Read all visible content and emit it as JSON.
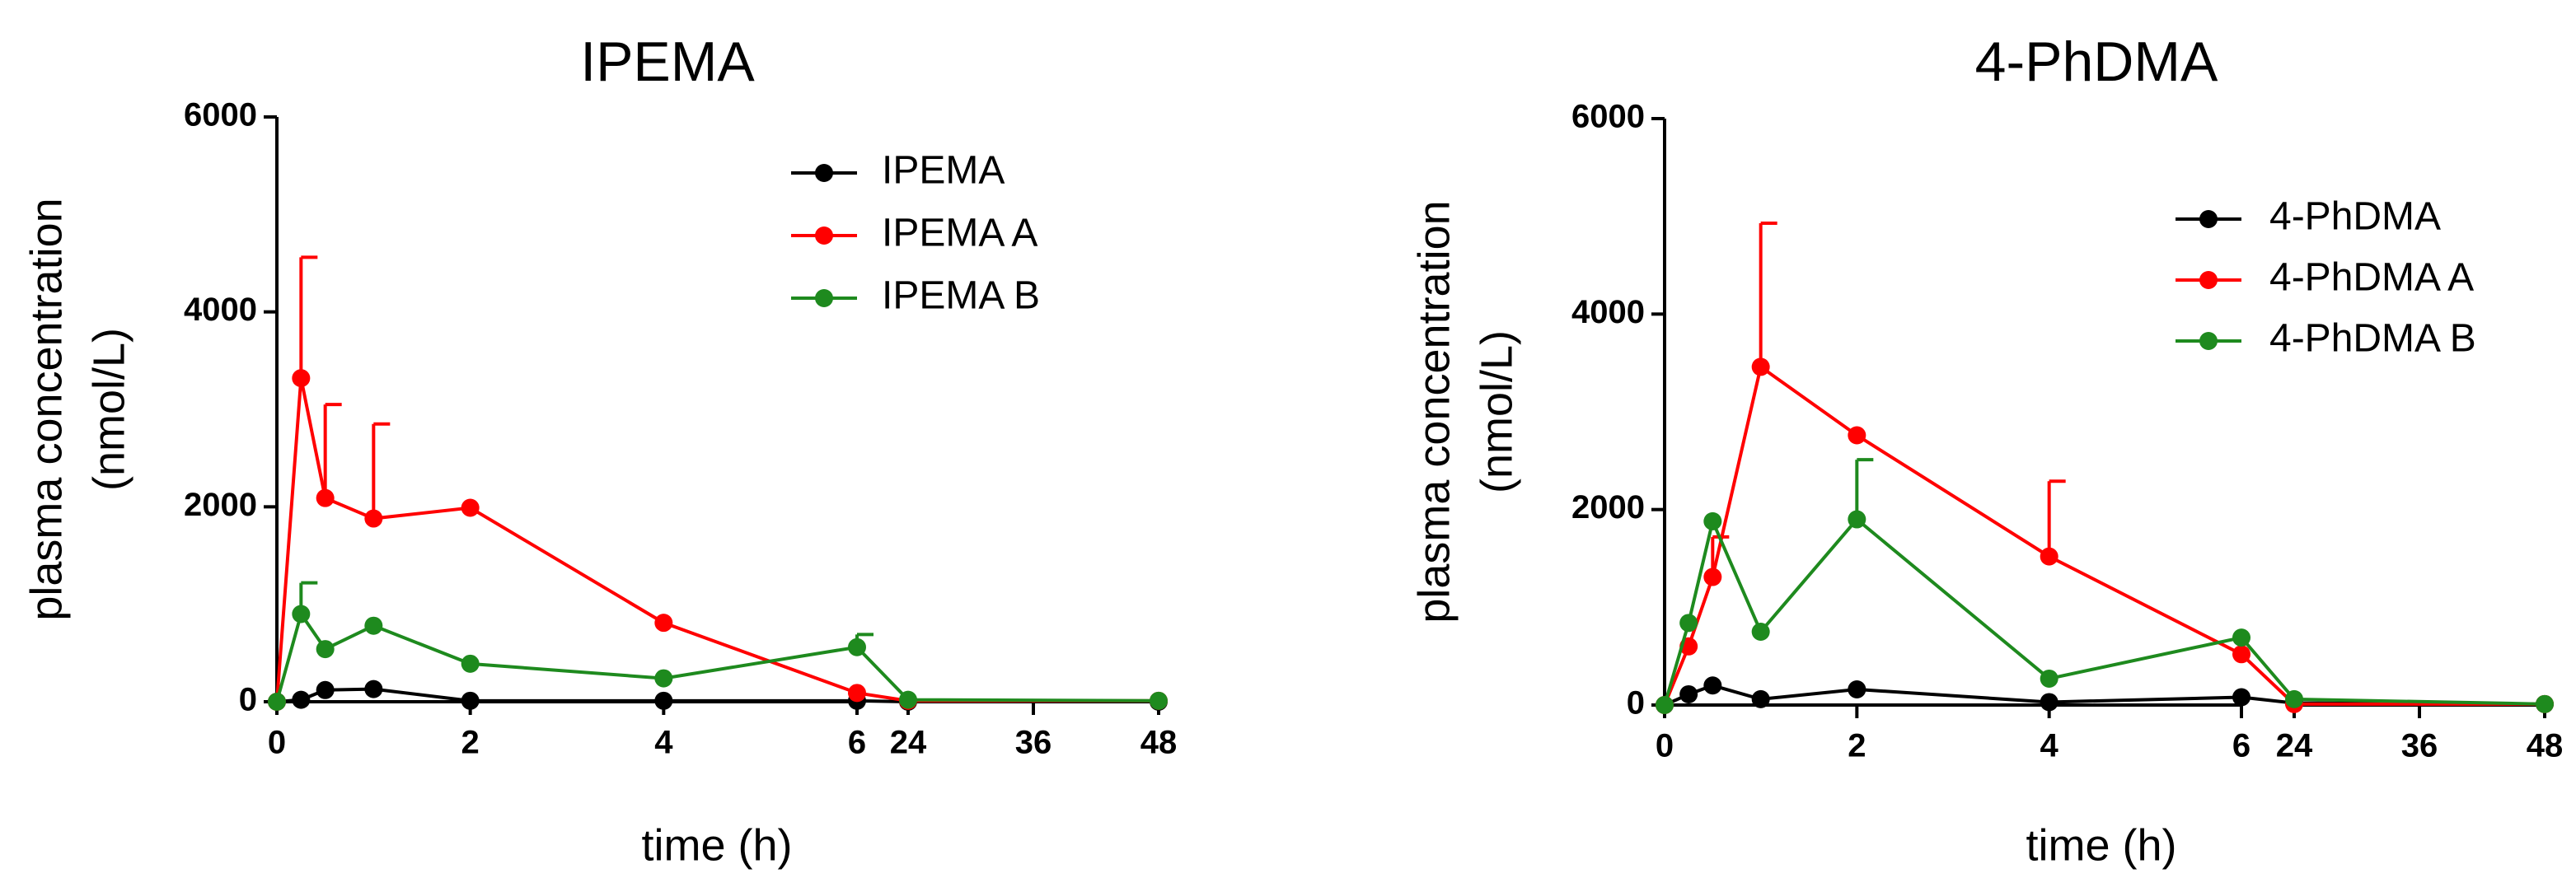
{
  "chart_data": [
    {
      "type": "line",
      "title": "IPEMA",
      "ylabel": [
        "plasma concentration",
        "(nmol/L)"
      ],
      "xlabel": "time (h)",
      "x": [
        0,
        0.25,
        0.5,
        1,
        2,
        4,
        6,
        24,
        48
      ],
      "xsegments": [
        {
          "xlim": [
            0,
            6
          ],
          "xticks": [
            0,
            2,
            4,
            6
          ]
        },
        {
          "xlim": [
            24,
            48
          ],
          "xticks": [
            24,
            36,
            48
          ]
        }
      ],
      "ylim": [
        0,
        6000
      ],
      "yticks": [
        0,
        2000,
        4000,
        6000
      ],
      "legend": "upper right",
      "error_bars": "up",
      "series": [
        {
          "name": "IPEMA",
          "color": "#000000",
          "values": [
            0,
            20,
            120,
            130,
            10,
            10,
            10,
            0,
            0
          ],
          "errors": [
            null,
            null,
            null,
            null,
            null,
            null,
            null,
            null,
            null
          ]
        },
        {
          "name": "IPEMA A",
          "color": "#ff0000",
          "values": [
            0,
            3320,
            2090,
            1880,
            1990,
            810,
            90,
            10,
            10
          ],
          "errors": [
            null,
            1240,
            960,
            970,
            null,
            null,
            null,
            null,
            null
          ]
        },
        {
          "name": "IPEMA B",
          "color": "#1e8a1e",
          "values": [
            0,
            900,
            540,
            780,
            390,
            240,
            560,
            20,
            10
          ],
          "errors": [
            null,
            320,
            null,
            null,
            null,
            null,
            130,
            null,
            null
          ]
        }
      ]
    },
    {
      "type": "line",
      "title": "4-PhDMA",
      "ylabel": [
        "plasma concentration",
        "(nmol/L)"
      ],
      "xlabel": "time (h)",
      "x": [
        0,
        0.25,
        0.5,
        1,
        2,
        4,
        6,
        24,
        48
      ],
      "xsegments": [
        {
          "xlim": [
            0,
            6
          ],
          "xticks": [
            0,
            2,
            4,
            6
          ]
        },
        {
          "xlim": [
            24,
            48
          ],
          "xticks": [
            24,
            36,
            48
          ]
        }
      ],
      "ylim": [
        0,
        6000
      ],
      "yticks": [
        0,
        2000,
        4000,
        6000
      ],
      "legend": "upper right",
      "error_bars": "up",
      "series": [
        {
          "name": "4-PhDMA",
          "color": "#000000",
          "values": [
            0,
            110,
            200,
            60,
            160,
            30,
            80,
            20,
            10
          ],
          "errors": [
            null,
            null,
            null,
            null,
            null,
            null,
            null,
            null,
            null
          ]
        },
        {
          "name": "4-PhDMA A",
          "color": "#ff0000",
          "values": [
            0,
            600,
            1310,
            3460,
            2760,
            1520,
            520,
            10,
            10
          ],
          "errors": [
            null,
            null,
            410,
            1470,
            null,
            770,
            null,
            null,
            null
          ]
        },
        {
          "name": "4-PhDMA B",
          "color": "#1e8a1e",
          "values": [
            0,
            840,
            1880,
            750,
            1900,
            270,
            690,
            60,
            10
          ],
          "errors": [
            null,
            null,
            null,
            null,
            610,
            null,
            null,
            null,
            null
          ]
        }
      ]
    }
  ]
}
